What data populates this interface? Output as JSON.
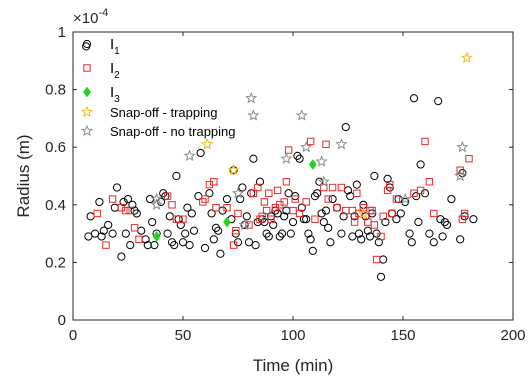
{
  "chart_data": {
    "type": "scatter",
    "xlabel": "Time (min)",
    "ylabel": "Radius (m)",
    "y_exponent": "×10",
    "y_exponent_power": "-4",
    "xlim": [
      0,
      200
    ],
    "ylim": [
      0,
      1
    ],
    "xticks": [
      "0",
      "50",
      "100",
      "150",
      "200"
    ],
    "yticks": [
      "0",
      "0.2",
      "0.4",
      "0.6",
      "0.8",
      "1"
    ],
    "grid": false,
    "legend_position": "top-left",
    "series": [
      {
        "name": "I",
        "subscript": "1",
        "marker": "circle",
        "color": "#000000",
        "points": [
          [
            6,
            0.95
          ],
          [
            7,
            0.29
          ],
          [
            8,
            0.36
          ],
          [
            10,
            0.3
          ],
          [
            12,
            0.41
          ],
          [
            13,
            0.29
          ],
          [
            14,
            0.31
          ],
          [
            16,
            0.33
          ],
          [
            18,
            0.3
          ],
          [
            19,
            0.39
          ],
          [
            20,
            0.46
          ],
          [
            22,
            0.22
          ],
          [
            23,
            0.41
          ],
          [
            24,
            0.3
          ],
          [
            25,
            0.42
          ],
          [
            26,
            0.26
          ],
          [
            27,
            0.4
          ],
          [
            28,
            0.38
          ],
          [
            29,
            0.37
          ],
          [
            31,
            0.31
          ],
          [
            33,
            0.28
          ],
          [
            34,
            0.26
          ],
          [
            35,
            0.42
          ],
          [
            36,
            0.34
          ],
          [
            37,
            0.26
          ],
          [
            38,
            0.3
          ],
          [
            40,
            0.41
          ],
          [
            41,
            0.44
          ],
          [
            42,
            0.43
          ],
          [
            43,
            0.3
          ],
          [
            44,
            0.36
          ],
          [
            45,
            0.27
          ],
          [
            46,
            0.26
          ],
          [
            47,
            0.5
          ],
          [
            48,
            0.35
          ],
          [
            49,
            0.33
          ],
          [
            50,
            0.27
          ],
          [
            51,
            0.3
          ],
          [
            52,
            0.39
          ],
          [
            53,
            0.26
          ],
          [
            54,
            0.37
          ],
          [
            55,
            0.31
          ],
          [
            57,
            0.43
          ],
          [
            58,
            0.58
          ],
          [
            60,
            0.25
          ],
          [
            62,
            0.44
          ],
          [
            63,
            0.37
          ],
          [
            64,
            0.28
          ],
          [
            65,
            0.32
          ],
          [
            66,
            0.31
          ],
          [
            67,
            0.23
          ],
          [
            68,
            0.38
          ],
          [
            70,
            0.42
          ],
          [
            72,
            0.35
          ],
          [
            73,
            0.52
          ],
          [
            74,
            0.3
          ],
          [
            75,
            0.27
          ],
          [
            76,
            0.42
          ],
          [
            77,
            0.46
          ],
          [
            78,
            0.33
          ],
          [
            79,
            0.36
          ],
          [
            80,
            0.27
          ],
          [
            81,
            0.44
          ],
          [
            82,
            0.56
          ],
          [
            83,
            0.26
          ],
          [
            84,
            0.34
          ],
          [
            85,
            0.48
          ],
          [
            86,
            0.35
          ],
          [
            87,
            0.34
          ],
          [
            88,
            0.3
          ],
          [
            89,
            0.29
          ],
          [
            90,
            0.36
          ],
          [
            91,
            0.33
          ],
          [
            92,
            0.38
          ],
          [
            93,
            0.37
          ],
          [
            94,
            0.29
          ],
          [
            95,
            0.3
          ],
          [
            96,
            0.36
          ],
          [
            97,
            0.38
          ],
          [
            98,
            0.44
          ],
          [
            99,
            0.3
          ],
          [
            100,
            0.34
          ],
          [
            101,
            0.43
          ],
          [
            102,
            0.57
          ],
          [
            103,
            0.56
          ],
          [
            104,
            0.39
          ],
          [
            105,
            0.35
          ],
          [
            106,
            0.35
          ],
          [
            107,
            0.3
          ],
          [
            108,
            0.28
          ],
          [
            109,
            0.24
          ],
          [
            110,
            0.43
          ],
          [
            111,
            0.44
          ],
          [
            112,
            0.48
          ],
          [
            113,
            0.37
          ],
          [
            114,
            0.34
          ],
          [
            115,
            0.38
          ],
          [
            116,
            0.32
          ],
          [
            117,
            0.27
          ],
          [
            118,
            0.42
          ],
          [
            120,
            0.39
          ],
          [
            122,
            0.3
          ],
          [
            123,
            0.36
          ],
          [
            124,
            0.67
          ],
          [
            125,
            0.45
          ],
          [
            126,
            0.43
          ],
          [
            127,
            0.29
          ],
          [
            128,
            0.36
          ],
          [
            129,
            0.47
          ],
          [
            130,
            0.3
          ],
          [
            131,
            0.28
          ],
          [
            132,
            0.4
          ],
          [
            133,
            0.36
          ],
          [
            134,
            0.31
          ],
          [
            135,
            0.29
          ],
          [
            136,
            0.37
          ],
          [
            137,
            0.5
          ],
          [
            138,
            0.3
          ],
          [
            139,
            0.27
          ],
          [
            140,
            0.15
          ],
          [
            141,
            0.21
          ],
          [
            142,
            0.34
          ],
          [
            143,
            0.49
          ],
          [
            144,
            0.46
          ],
          [
            145,
            0.37
          ],
          [
            147,
            0.35
          ],
          [
            148,
            0.42
          ],
          [
            149,
            0.37
          ],
          [
            151,
            0.41
          ],
          [
            153,
            0.3
          ],
          [
            154,
            0.27
          ],
          [
            155,
            0.77
          ],
          [
            156,
            0.43
          ],
          [
            157,
            0.34
          ],
          [
            158,
            0.54
          ],
          [
            160,
            0.44
          ],
          [
            162,
            0.3
          ],
          [
            164,
            0.27
          ],
          [
            166,
            0.76
          ],
          [
            167,
            0.35
          ],
          [
            168,
            0.29
          ],
          [
            169,
            0.34
          ],
          [
            170,
            0.33
          ],
          [
            172,
            0.42
          ],
          [
            176,
            0.28
          ],
          [
            177,
            0.51
          ],
          [
            178,
            0.36
          ],
          [
            182,
            0.35
          ]
        ]
      },
      {
        "name": "I",
        "subscript": "2",
        "marker": "square",
        "color": "#e8282b",
        "points": [
          [
            11,
            0.37
          ],
          [
            15,
            0.26
          ],
          [
            18,
            0.42
          ],
          [
            22,
            0.39
          ],
          [
            24,
            0.38
          ],
          [
            26,
            0.38
          ],
          [
            28,
            0.32
          ],
          [
            30,
            0.28
          ],
          [
            43,
            0.43
          ],
          [
            45,
            0.4
          ],
          [
            47,
            0.35
          ],
          [
            50,
            0.35
          ],
          [
            59,
            0.41
          ],
          [
            60,
            0.42
          ],
          [
            62,
            0.47
          ],
          [
            64,
            0.48
          ],
          [
            65,
            0.39
          ],
          [
            70,
            0.39
          ],
          [
            73,
            0.26
          ],
          [
            74,
            0.31
          ],
          [
            75,
            0.37
          ],
          [
            80,
            0.33
          ],
          [
            82,
            0.44
          ],
          [
            84,
            0.46
          ],
          [
            85,
            0.35
          ],
          [
            86,
            0.36
          ],
          [
            87,
            0.41
          ],
          [
            88,
            0.38
          ],
          [
            89,
            0.44
          ],
          [
            90,
            0.35
          ],
          [
            92,
            0.39
          ],
          [
            93,
            0.45
          ],
          [
            94,
            0.4
          ],
          [
            96,
            0.41
          ],
          [
            97,
            0.48
          ],
          [
            98,
            0.59
          ],
          [
            100,
            0.38
          ],
          [
            101,
            0.42
          ],
          [
            103,
            0.37
          ],
          [
            106,
            0.41
          ],
          [
            108,
            0.62
          ],
          [
            110,
            0.35
          ],
          [
            114,
            0.46
          ],
          [
            115,
            0.61
          ],
          [
            116,
            0.42
          ],
          [
            118,
            0.46
          ],
          [
            120,
            0.39
          ],
          [
            122,
            0.46
          ],
          [
            124,
            0.38
          ],
          [
            127,
            0.38
          ],
          [
            128,
            0.34
          ],
          [
            129,
            0.44
          ],
          [
            130,
            0.37
          ],
          [
            132,
            0.39
          ],
          [
            134,
            0.34
          ],
          [
            135,
            0.38
          ],
          [
            136,
            0.38
          ],
          [
            137,
            0.33
          ],
          [
            138,
            0.21
          ],
          [
            140,
            0.29
          ],
          [
            141,
            0.36
          ],
          [
            143,
            0.45
          ],
          [
            144,
            0.47
          ],
          [
            145,
            0.37
          ],
          [
            147,
            0.42
          ],
          [
            155,
            0.44
          ],
          [
            158,
            0.45
          ],
          [
            160,
            0.62
          ],
          [
            162,
            0.48
          ],
          [
            164,
            0.37
          ],
          [
            176,
            0.52
          ],
          [
            177,
            0.35
          ],
          [
            178,
            0.37
          ],
          [
            180,
            0.56
          ]
        ]
      },
      {
        "name": "I",
        "subscript": "3",
        "marker": "diamond",
        "color": "#22d21c",
        "points": [
          [
            38,
            0.29
          ],
          [
            70,
            0.34
          ],
          [
            109,
            0.54
          ]
        ]
      },
      {
        "name": "Snap-off - trapping",
        "marker": "star",
        "color": "#f5b820",
        "points": [
          [
            61,
            0.61
          ],
          [
            73,
            0.52
          ],
          [
            132,
            0.37
          ],
          [
            179,
            0.91
          ]
        ]
      },
      {
        "name": "Snap-off - no trapping",
        "marker": "star",
        "color": "#8c8c8c",
        "points": [
          [
            38,
            0.42
          ],
          [
            38,
            0.4
          ],
          [
            53,
            0.57
          ],
          [
            75,
            0.44
          ],
          [
            78,
            0.33
          ],
          [
            81,
            0.77
          ],
          [
            82,
            0.71
          ],
          [
            97,
            0.56
          ],
          [
            104,
            0.71
          ],
          [
            106,
            0.6
          ],
          [
            113,
            0.55
          ],
          [
            114,
            0.48
          ],
          [
            122,
            0.61
          ],
          [
            151,
            0.42
          ],
          [
            176,
            0.5
          ],
          [
            177,
            0.6
          ]
        ]
      }
    ]
  }
}
